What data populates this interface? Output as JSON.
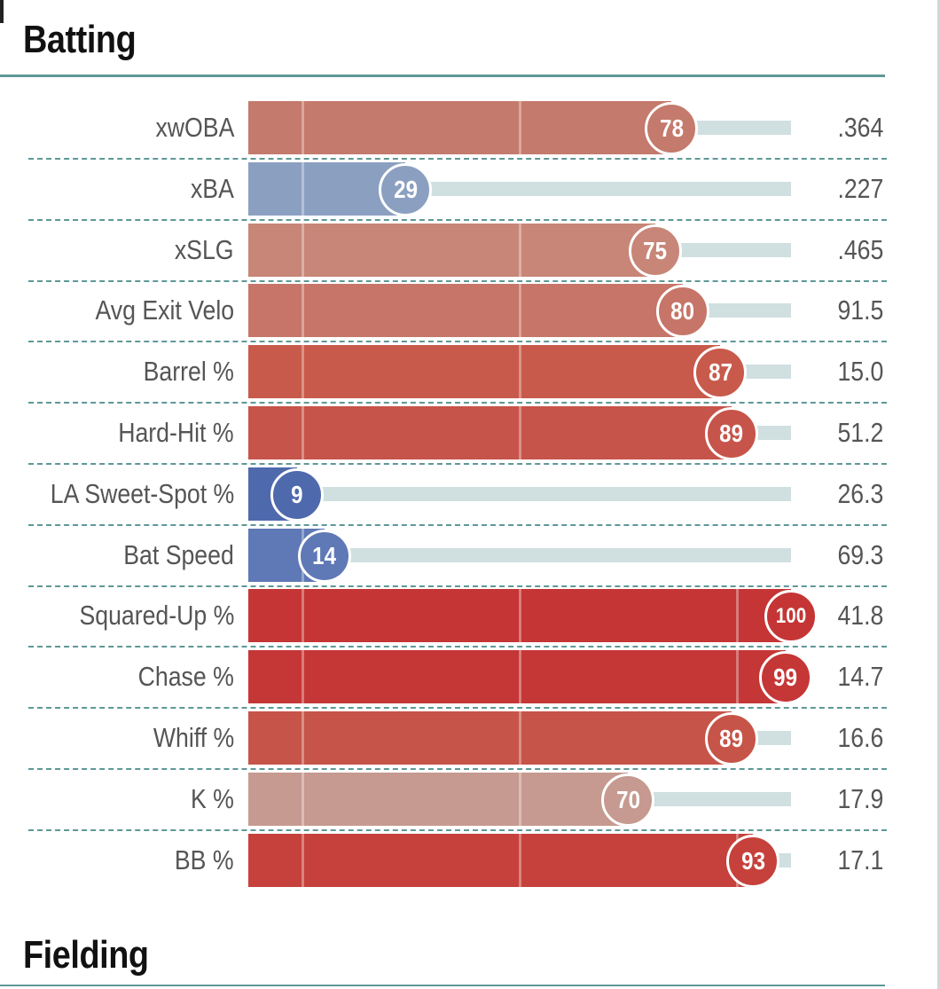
{
  "sections": {
    "batting_title": "Batting",
    "fielding_title": "Fielding"
  },
  "colors": {
    "section_rule": "#5e9896",
    "track": "#d0dfe0",
    "badge_border": "#ffffff"
  },
  "chart_data": {
    "type": "bar",
    "orientation": "horizontal",
    "title": "Batting",
    "xlim": [
      0,
      100
    ],
    "categories": [
      "xwOBA",
      "xBA",
      "xSLG",
      "Avg Exit Velo",
      "Barrel %",
      "Hard-Hit %",
      "LA Sweet-Spot %",
      "Bat Speed",
      "Squared-Up %",
      "Chase %",
      "Whiff %",
      "K %",
      "BB %"
    ],
    "series": [
      {
        "name": "",
        "values": [
          78,
          29,
          75,
          80,
          87,
          89,
          9,
          14,
          100,
          99,
          89,
          70,
          93
        ]
      }
    ],
    "stat_values": [
      ".364",
      ".227",
      ".465",
      "91.5",
      "15.0",
      "51.2",
      "26.3",
      "69.3",
      "41.8",
      "14.7",
      "16.6",
      "17.9",
      "17.1"
    ],
    "bar_colors": [
      "#c47a6c",
      "#8ba0c1",
      "#c78678",
      "#c67568",
      "#c85a4b",
      "#c7544a",
      "#4f69ad",
      "#5f78b6",
      "#c53535",
      "#c53636",
      "#c65448",
      "#c69a90",
      "#c6413b"
    ],
    "grid": true,
    "legend": "none"
  }
}
